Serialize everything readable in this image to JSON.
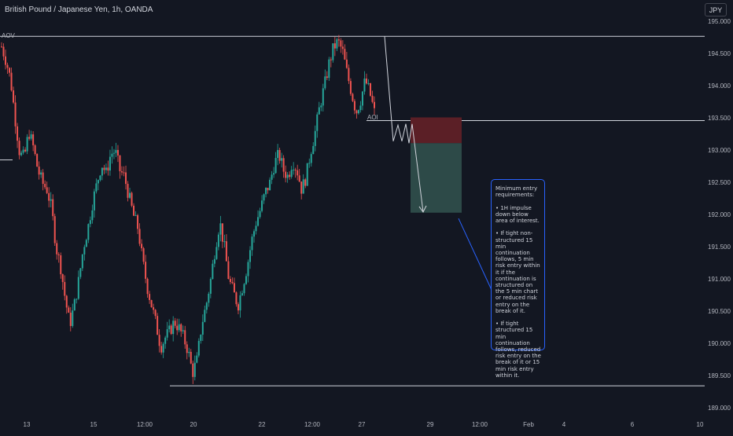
{
  "header": {
    "title": "British Pound / Japanese Yen, 1h, OANDA",
    "currency": "JPY"
  },
  "colors": {
    "background": "#131722",
    "up_candle": "#26a69a",
    "down_candle": "#ef5350",
    "line": "#d1d4dc",
    "stop_zone": "#5b1f26",
    "target_zone": "#2d4a48",
    "note_border": "#2962ff",
    "note_arrow": "#2962ff"
  },
  "annotations": {
    "aov_label": "AOV",
    "aoi_label": "AOI",
    "note_text": "Minimum entry requirements:\n\n• 1H impulse down below area of interest.\n\n• If tight non-structured 15 min continuation follows, 5 min risk entry within it if the continuation is structured on the 5 min chart or reduced risk entry on the break of it.\n\n• If tight structured 15 min continuation follows, reduced risk entry on the break of it or 15 min risk entry within it."
  },
  "chart_data": {
    "type": "candlestick",
    "symbol": "GBPJPY",
    "timeframe": "1h",
    "ylim": [
      188.9,
      195.1
    ],
    "y_ticks": [
      "195.000",
      "194.500",
      "194.000",
      "193.500",
      "193.000",
      "192.500",
      "192.000",
      "191.500",
      "191.000",
      "190.500",
      "190.000",
      "189.500",
      "189.000"
    ],
    "x_ticks": [
      "13",
      "15",
      "12:00",
      "20",
      "22",
      "12:00",
      "27",
      "29",
      "12:00",
      "Feb",
      "4",
      "6",
      "10"
    ],
    "horizontal_levels": [
      {
        "label": "AOV",
        "price": 194.78
      },
      {
        "label": "AOI",
        "price": 193.47
      },
      {
        "label": "",
        "price": 192.86
      },
      {
        "label": "",
        "price": 189.35
      }
    ],
    "trade_setup": {
      "direction": "short",
      "entry": 193.12,
      "stop": 193.52,
      "target": 192.04
    },
    "close_path": [
      194.62,
      194.4,
      194.1,
      193.5,
      192.95,
      192.9,
      193.3,
      193.05,
      192.7,
      192.5,
      192.4,
      192.1,
      191.5,
      191.2,
      190.7,
      190.3,
      190.6,
      191.0,
      191.5,
      191.8,
      192.2,
      192.5,
      192.8,
      192.65,
      192.95,
      193.0,
      192.7,
      192.6,
      192.3,
      192.0,
      191.8,
      191.3,
      190.9,
      190.6,
      190.3,
      189.95,
      190.1,
      190.2,
      190.35,
      190.25,
      190.1,
      189.9,
      189.55,
      189.75,
      190.3,
      190.6,
      191.0,
      191.5,
      191.9,
      191.5,
      191.0,
      190.8,
      190.6,
      190.9,
      191.2,
      191.6,
      191.9,
      192.1,
      192.35,
      192.5,
      192.8,
      192.95,
      192.7,
      192.6,
      192.85,
      192.7,
      192.4,
      192.6,
      193.0,
      193.3,
      193.7,
      194.0,
      194.35,
      194.6,
      194.7,
      194.55,
      194.2,
      193.9,
      193.6,
      193.8,
      194.1,
      193.9,
      193.6
    ]
  }
}
